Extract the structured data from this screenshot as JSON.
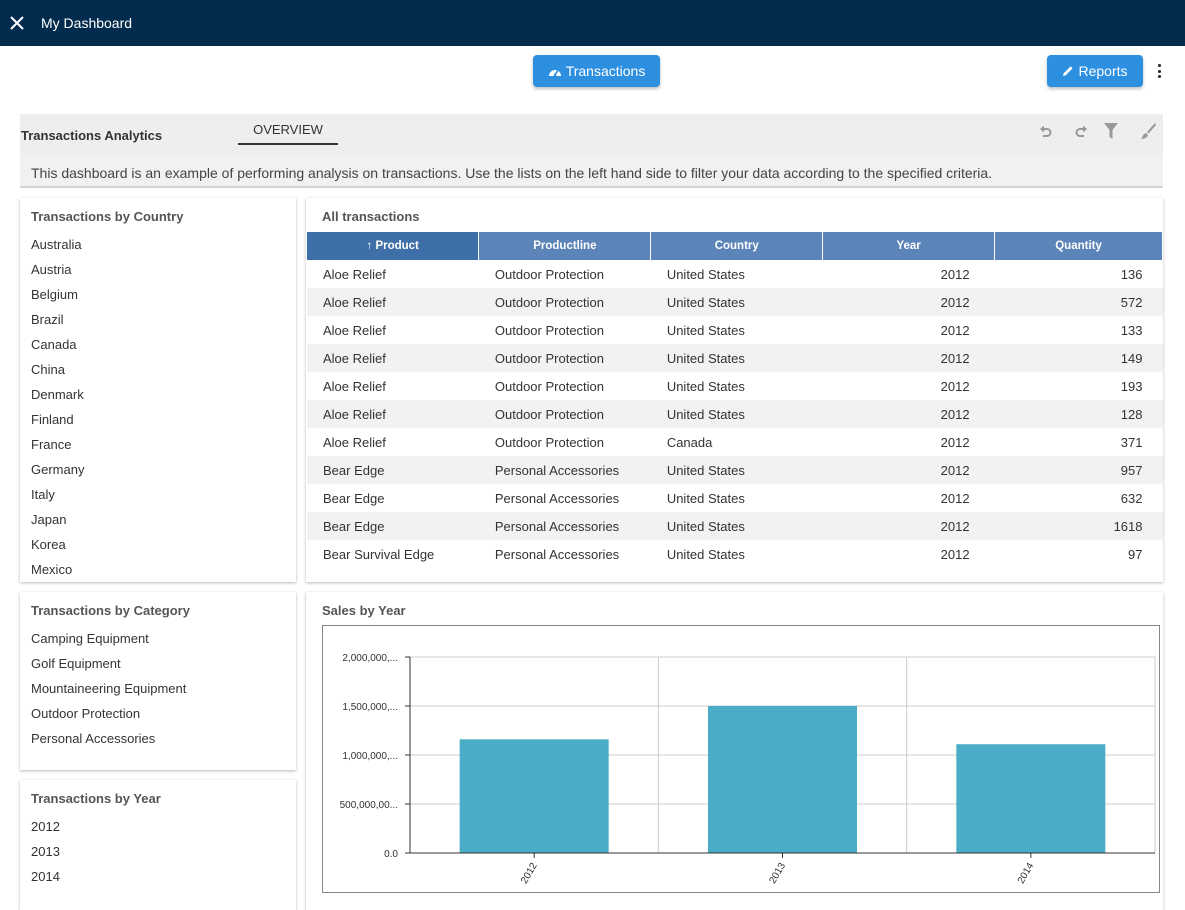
{
  "header": {
    "title": "My Dashboard"
  },
  "toolbar": {
    "transactions_label": "Transactions",
    "reports_label": "Reports"
  },
  "analytics": {
    "title": "Transactions Analytics",
    "tab": "OVERVIEW",
    "description": "This dashboard is an example of performing analysis on transactions. Use the lists on the left hand side to filter your data according to the specified criteria."
  },
  "filters": {
    "country": {
      "title": "Transactions by Country",
      "items": [
        "Australia",
        "Austria",
        "Belgium",
        "Brazil",
        "Canada",
        "China",
        "Denmark",
        "Finland",
        "France",
        "Germany",
        "Italy",
        "Japan",
        "Korea",
        "Mexico"
      ]
    },
    "category": {
      "title": "Transactions by Category",
      "items": [
        "Camping Equipment",
        "Golf Equipment",
        "Mountaineering Equipment",
        "Outdoor Protection",
        "Personal Accessories"
      ]
    },
    "year": {
      "title": "Transactions by Year",
      "items": [
        "2012",
        "2013",
        "2014"
      ]
    }
  },
  "table": {
    "title": "All transactions",
    "sort_arrow": "↑",
    "columns": [
      "Product",
      "Productline",
      "Country",
      "Year",
      "Quantity"
    ],
    "rows": [
      [
        "Aloe Relief",
        "Outdoor Protection",
        "United States",
        "2012",
        "136"
      ],
      [
        "Aloe Relief",
        "Outdoor Protection",
        "United States",
        "2012",
        "572"
      ],
      [
        "Aloe Relief",
        "Outdoor Protection",
        "United States",
        "2012",
        "133"
      ],
      [
        "Aloe Relief",
        "Outdoor Protection",
        "United States",
        "2012",
        "149"
      ],
      [
        "Aloe Relief",
        "Outdoor Protection",
        "United States",
        "2012",
        "193"
      ],
      [
        "Aloe Relief",
        "Outdoor Protection",
        "United States",
        "2012",
        "128"
      ],
      [
        "Aloe Relief",
        "Outdoor Protection",
        "Canada",
        "2012",
        "371"
      ],
      [
        "Bear Edge",
        "Personal Accessories",
        "United States",
        "2012",
        "957"
      ],
      [
        "Bear Edge",
        "Personal Accessories",
        "United States",
        "2012",
        "632"
      ],
      [
        "Bear Edge",
        "Personal Accessories",
        "United States",
        "2012",
        "1618"
      ],
      [
        "Bear Survival Edge",
        "Personal Accessories",
        "United States",
        "2012",
        "97"
      ]
    ]
  },
  "chart_data": {
    "type": "bar",
    "title": "Sales by Year",
    "categories": [
      "2012",
      "2013",
      "2014"
    ],
    "values": [
      1160000000,
      1500000000,
      1110000000
    ],
    "ylim": [
      0,
      2000000000
    ],
    "yticks": [
      0,
      500000000,
      1000000000,
      1500000000,
      2000000000
    ],
    "ytick_labels": [
      "0.0",
      "500,000,00...",
      "1,000,000,...",
      "1,500,000,...",
      "2,000,000,..."
    ],
    "bar_color": "#4aacc6",
    "grid": true
  },
  "colors": {
    "header_bg": "#022b4d",
    "button": "#2d8fe0",
    "table_header": "#5b85b8"
  }
}
